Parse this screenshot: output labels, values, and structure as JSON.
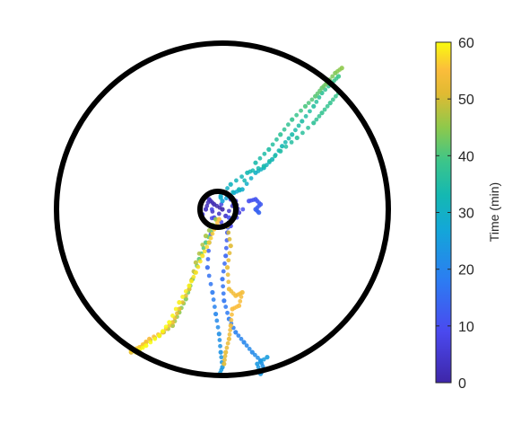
{
  "chart_data": {
    "type": "scatter",
    "title": "",
    "colorbar": {
      "label": "Time (min)",
      "range": [
        0,
        60
      ],
      "ticks": [
        "0",
        "10",
        "20",
        "30",
        "40",
        "50",
        "60"
      ],
      "colormap": "parula"
    },
    "arena": {
      "outer_radius": 1.0,
      "start_zone_radius": 0.13,
      "start_zone_center": [
        -0.03,
        0.0
      ]
    },
    "tracks": [
      {
        "points": [
          [
            0.0,
            0.0,
            0
          ],
          [
            -0.05,
            0.03,
            1
          ],
          [
            -0.08,
            0.06,
            2
          ],
          [
            -0.1,
            0.0,
            3
          ],
          [
            0.02,
            -0.04,
            4
          ],
          [
            0.08,
            0.05,
            5
          ],
          [
            0.1,
            -0.02,
            6
          ],
          [
            0.05,
            0.06,
            7
          ],
          [
            -0.12,
            -0.03,
            8
          ],
          [
            0.05,
            -0.1,
            9
          ],
          [
            0.16,
            0.05,
            10
          ],
          [
            0.2,
            0.06,
            11
          ],
          [
            0.23,
            0.03,
            12
          ],
          [
            0.2,
            0.0,
            13
          ],
          [
            0.22,
            -0.02,
            14
          ]
        ]
      },
      {
        "points": [
          [
            0.04,
            -0.05,
            10
          ],
          [
            0.03,
            -0.14,
            12
          ],
          [
            0.02,
            -0.28,
            14
          ],
          [
            0.0,
            -0.42,
            16
          ],
          [
            0.01,
            -0.55,
            17
          ],
          [
            0.04,
            -0.66,
            18
          ],
          [
            0.08,
            -0.74,
            19
          ],
          [
            0.13,
            -0.8,
            20
          ],
          [
            0.18,
            -0.86,
            21
          ],
          [
            0.23,
            -0.91,
            22
          ],
          [
            0.25,
            -0.96,
            23
          ],
          [
            0.23,
            -0.99,
            24
          ],
          [
            0.21,
            -0.93,
            24
          ],
          [
            0.27,
            -0.89,
            25
          ]
        ]
      },
      {
        "points": [
          [
            -0.05,
            -0.05,
            8
          ],
          [
            -0.08,
            -0.2,
            12
          ],
          [
            -0.09,
            -0.35,
            15
          ],
          [
            -0.06,
            -0.5,
            18
          ],
          [
            -0.04,
            -0.63,
            20
          ],
          [
            -0.02,
            -0.75,
            22
          ],
          [
            -0.01,
            -0.86,
            23
          ],
          [
            0.0,
            -0.95,
            24
          ],
          [
            -0.02,
            -1.0,
            25
          ]
        ]
      },
      {
        "points": [
          [
            0.0,
            0.05,
            26
          ],
          [
            0.07,
            0.1,
            28
          ],
          [
            0.12,
            0.12,
            29
          ],
          [
            0.2,
            0.22,
            30
          ],
          [
            0.25,
            0.25,
            31
          ],
          [
            0.3,
            0.3,
            32
          ],
          [
            0.36,
            0.38,
            33
          ],
          [
            0.42,
            0.45,
            34
          ],
          [
            0.48,
            0.53,
            35
          ],
          [
            0.55,
            0.62,
            36
          ],
          [
            0.6,
            0.7,
            37
          ],
          [
            0.66,
            0.76,
            38
          ],
          [
            0.7,
            0.8,
            39
          ]
        ]
      },
      {
        "points": [
          [
            -0.01,
            0.07,
            30
          ],
          [
            0.1,
            0.12,
            32
          ],
          [
            0.2,
            0.28,
            34
          ],
          [
            0.28,
            0.36,
            35
          ],
          [
            0.35,
            0.45,
            37
          ],
          [
            0.42,
            0.54,
            38
          ],
          [
            0.5,
            0.62,
            40
          ],
          [
            0.56,
            0.68,
            41
          ],
          [
            0.6,
            0.73,
            42
          ],
          [
            0.63,
            0.76,
            43
          ],
          [
            0.68,
            0.82,
            44
          ],
          [
            0.72,
            0.85,
            45
          ]
        ]
      },
      {
        "points": [
          [
            -0.01,
            0.08,
            29
          ],
          [
            0.05,
            0.15,
            31
          ],
          [
            0.15,
            0.22,
            33
          ],
          [
            0.25,
            0.26,
            34
          ],
          [
            0.35,
            0.35,
            35
          ],
          [
            0.45,
            0.43,
            36
          ],
          [
            0.55,
            0.52,
            37
          ],
          [
            0.6,
            0.58,
            38
          ],
          [
            0.65,
            0.64,
            38
          ],
          [
            0.7,
            0.7,
            39
          ]
        ]
      },
      {
        "points": [
          [
            -0.05,
            -0.1,
            38
          ],
          [
            -0.1,
            -0.2,
            40
          ],
          [
            -0.14,
            -0.3,
            41
          ],
          [
            -0.18,
            -0.42,
            42
          ],
          [
            -0.22,
            -0.54,
            44
          ],
          [
            -0.26,
            -0.62,
            45
          ],
          [
            -0.3,
            -0.7,
            47
          ],
          [
            -0.38,
            -0.76,
            48
          ],
          [
            -0.46,
            -0.8,
            50
          ],
          [
            -0.5,
            -0.84,
            50
          ],
          [
            -0.55,
            -0.86,
            51
          ]
        ]
      },
      {
        "points": [
          [
            -0.04,
            -0.06,
            45
          ],
          [
            -0.1,
            -0.16,
            47
          ],
          [
            -0.16,
            -0.32,
            48
          ],
          [
            -0.2,
            -0.48,
            50
          ],
          [
            -0.26,
            -0.6,
            52
          ],
          [
            -0.3,
            -0.68,
            53
          ],
          [
            -0.36,
            -0.74,
            54
          ],
          [
            -0.44,
            -0.78,
            55
          ],
          [
            -0.5,
            -0.83,
            56
          ],
          [
            -0.55,
            -0.85,
            57
          ]
        ]
      },
      {
        "points": [
          [
            0.03,
            -0.1,
            50
          ],
          [
            0.05,
            -0.22,
            51
          ],
          [
            0.03,
            -0.35,
            52
          ],
          [
            0.04,
            -0.48,
            53
          ],
          [
            0.08,
            -0.52,
            54
          ],
          [
            0.12,
            -0.5,
            54
          ],
          [
            0.1,
            -0.58,
            55
          ],
          [
            0.06,
            -0.6,
            55
          ],
          [
            0.05,
            -0.7,
            54
          ],
          [
            0.04,
            -0.78,
            53
          ],
          [
            0.02,
            -0.86,
            52
          ],
          [
            0.01,
            -0.93,
            51
          ]
        ]
      },
      {
        "points": [
          [
            -0.02,
            -0.06,
            55
          ],
          [
            -0.05,
            -0.12,
            56
          ],
          [
            -0.08,
            -0.2,
            57
          ],
          [
            -0.12,
            -0.28,
            58
          ],
          [
            -0.16,
            -0.38,
            58
          ],
          [
            -0.2,
            -0.46,
            59
          ],
          [
            -0.26,
            -0.56,
            59
          ],
          [
            -0.32,
            -0.68,
            60
          ],
          [
            -0.38,
            -0.76,
            60
          ],
          [
            -0.46,
            -0.82,
            60
          ],
          [
            -0.52,
            -0.86,
            60
          ]
        ]
      }
    ]
  }
}
